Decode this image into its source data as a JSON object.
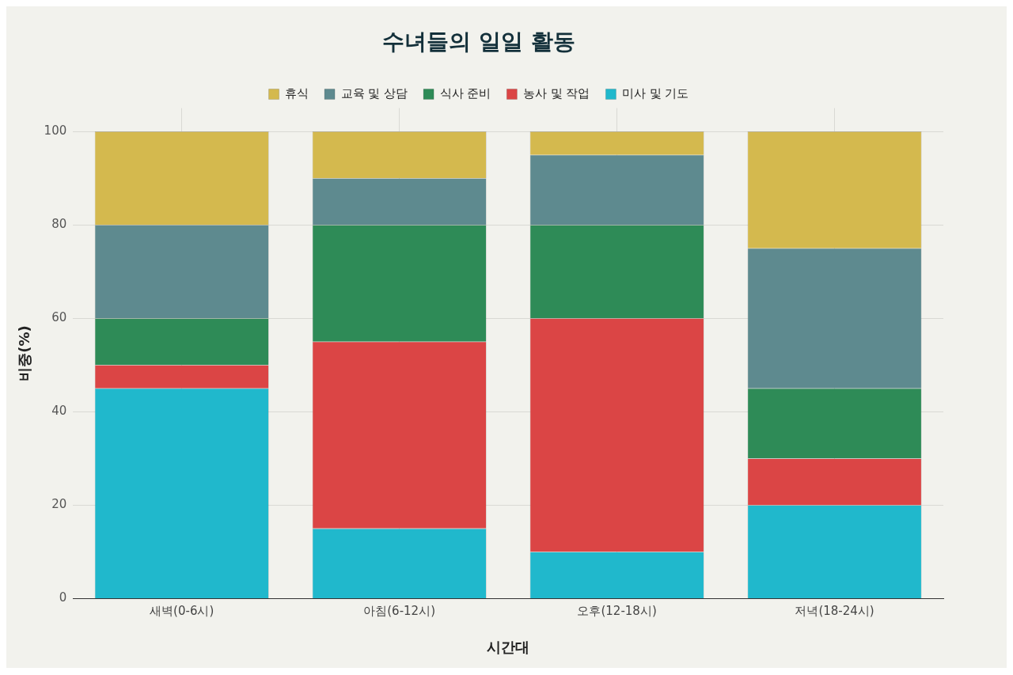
{
  "chart_data": {
    "type": "bar",
    "title": "수녀들의 일일 활동",
    "xlabel": "시간대",
    "ylabel": "비중(%)",
    "categories": [
      "새벽(0-6시)",
      "아침(6-12시)",
      "오후(12-18시)",
      "저녁(18-24시)"
    ],
    "stacked": true,
    "ylim": [
      0,
      105
    ],
    "yticks": [
      0,
      20,
      40,
      60,
      80,
      100
    ],
    "grid": true,
    "legend": "top",
    "series": [
      {
        "name": "미사 및 기도",
        "color": "#20b8cc",
        "values": [
          45,
          15,
          10,
          20
        ]
      },
      {
        "name": "농사 및 작업",
        "color": "#db4545",
        "values": [
          5,
          40,
          50,
          10
        ]
      },
      {
        "name": "식사 준비",
        "color": "#2e8b57",
        "values": [
          10,
          25,
          20,
          15
        ]
      },
      {
        "name": "교육 및 상담",
        "color": "#5e8a8f",
        "values": [
          20,
          10,
          15,
          30
        ]
      },
      {
        "name": "휴식",
        "color": "#d4b94e",
        "values": [
          20,
          10,
          5,
          25
        ]
      }
    ]
  }
}
